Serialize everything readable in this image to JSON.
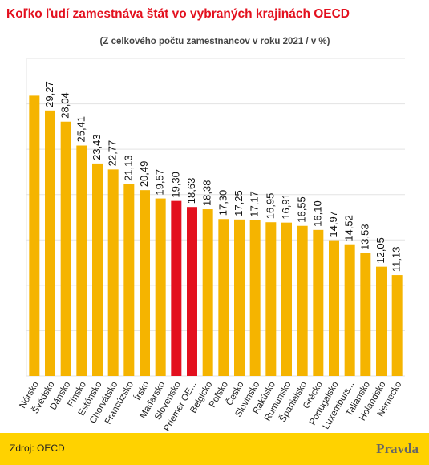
{
  "chart_data": {
    "type": "bar",
    "title": "Koľko ľudí zamestnáva štát vo vybraných krajinách OECD",
    "subtitle": "(Z celkového počtu zamestnancov v roku 2021 / v %)",
    "categories": [
      "Nórsko",
      "Švédsko",
      "Dánsko",
      "Fínsko",
      "Estónsko",
      "Chorvátsko",
      "Francúzsko",
      "Írsko",
      "Maďarsko",
      "Slovensko",
      "Priemer OE...",
      "Belgicko",
      "Poľsko",
      "Česko",
      "Slovinsko",
      "Rakúsko",
      "Rumunsko",
      "Španielsko",
      "Grécko",
      "Portugalsko",
      "Luxemburs...",
      "Taliansko",
      "Holandsko",
      "Nemecko"
    ],
    "values": [
      30.9,
      29.27,
      28.04,
      25.41,
      23.43,
      22.77,
      21.13,
      20.49,
      19.57,
      19.3,
      18.63,
      18.38,
      17.3,
      17.25,
      17.17,
      16.95,
      16.91,
      16.55,
      16.1,
      14.97,
      14.52,
      13.53,
      12.05,
      11.13
    ],
    "value_labels": [
      null,
      "29,27",
      "28,04",
      "25,41",
      "23,43",
      "22,77",
      "21,13",
      "20,49",
      "19,57",
      "19,30",
      "18,63",
      "18,38",
      "17,30",
      "17,25",
      "17,17",
      "16,95",
      "16,91",
      "16,55",
      "16,10",
      "14,97",
      "14,52",
      "13,53",
      "12,05",
      "11,13"
    ],
    "colors": [
      "#f5b400",
      "#f5b400",
      "#f5b400",
      "#f5b400",
      "#f5b400",
      "#f5b400",
      "#f5b400",
      "#f5b400",
      "#f5b400",
      "#e3101e",
      "#e3101e",
      "#f5b400",
      "#f5b400",
      "#f5b400",
      "#f5b400",
      "#f5b400",
      "#f5b400",
      "#f5b400",
      "#f5b400",
      "#f5b400",
      "#f5b400",
      "#f5b400",
      "#f5b400",
      "#f5b400"
    ],
    "ylim": [
      0,
      35
    ],
    "yticks": [
      0,
      5,
      10,
      15,
      20,
      25,
      30,
      35
    ],
    "grid": true,
    "source": "Zdroj: OECD",
    "brand": "Pravda"
  }
}
